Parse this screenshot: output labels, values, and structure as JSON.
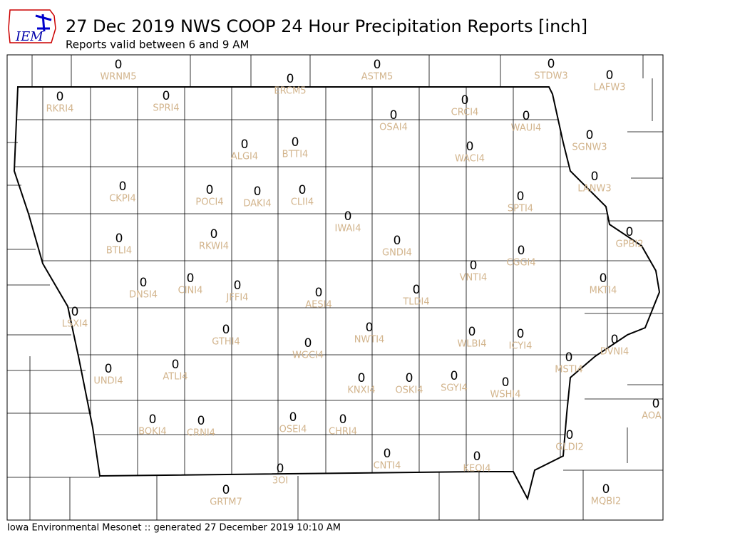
{
  "logo": "IEM",
  "title": "27 Dec 2019 NWS COOP 24 Hour Precipitation Reports [inch]",
  "subtitle": "Reports valid between 6 and 9 AM",
  "footer": "Iowa Environmental Mesonet :: generated 27 December 2019 10:10 AM",
  "stations": [
    {
      "id": "WRNM5",
      "value": 0
    },
    {
      "id": "ERCM5",
      "value": 0
    },
    {
      "id": "ASTM5",
      "value": 0
    },
    {
      "id": "STDW3",
      "value": 0
    },
    {
      "id": "LAFW3",
      "value": 0
    },
    {
      "id": "RKRI4",
      "value": 0
    },
    {
      "id": "SPRI4",
      "value": 0
    },
    {
      "id": "CRCI4",
      "value": 0
    },
    {
      "id": "OSAI4",
      "value": 0
    },
    {
      "id": "WAUI4",
      "value": 0
    },
    {
      "id": "SGNW3",
      "value": 0
    },
    {
      "id": "ALGI4",
      "value": 0
    },
    {
      "id": "BTTI4",
      "value": 0
    },
    {
      "id": "WACI4",
      "value": 0
    },
    {
      "id": "LANW3",
      "value": 0
    },
    {
      "id": "CKPI4",
      "value": 0
    },
    {
      "id": "POCI4",
      "value": 0
    },
    {
      "id": "DAKI4",
      "value": 0
    },
    {
      "id": "CLII4",
      "value": 0
    },
    {
      "id": "SPTI4",
      "value": 0
    },
    {
      "id": "IWAI4",
      "value": 0
    },
    {
      "id": "GPBI2",
      "value": 0
    },
    {
      "id": "RKWI4",
      "value": 0
    },
    {
      "id": "BTLI4",
      "value": 0
    },
    {
      "id": "GNDI4",
      "value": 0
    },
    {
      "id": "CGGI4",
      "value": 0
    },
    {
      "id": "VNTI4",
      "value": 0
    },
    {
      "id": "CINI4",
      "value": 0
    },
    {
      "id": "MKTI4",
      "value": 0
    },
    {
      "id": "DNSI4",
      "value": 0
    },
    {
      "id": "JFFI4",
      "value": 0
    },
    {
      "id": "TLDI4",
      "value": 0
    },
    {
      "id": "AESI4",
      "value": 0
    },
    {
      "id": "LSXI4",
      "value": 0
    },
    {
      "id": "NWTI4",
      "value": 0
    },
    {
      "id": "GTHI4",
      "value": 0
    },
    {
      "id": "WLBI4",
      "value": 0
    },
    {
      "id": "ICYI4",
      "value": 0
    },
    {
      "id": "DVNI4",
      "value": 0
    },
    {
      "id": "WGCI4",
      "value": 0
    },
    {
      "id": "MSTI4",
      "value": 0
    },
    {
      "id": "UNDI4",
      "value": 0
    },
    {
      "id": "ATLI4",
      "value": 0
    },
    {
      "id": "KNXI4",
      "value": 0
    },
    {
      "id": "OSKI4",
      "value": 0
    },
    {
      "id": "SGYI4",
      "value": 0
    },
    {
      "id": "WSHI4",
      "value": 0
    },
    {
      "id": "AOA",
      "value": 0
    },
    {
      "id": "BOKI4",
      "value": 0
    },
    {
      "id": "CRNI4",
      "value": 0
    },
    {
      "id": "OSEI4",
      "value": 0
    },
    {
      "id": "CHRI4",
      "value": 0
    },
    {
      "id": "GLDI2",
      "value": 0
    },
    {
      "id": "CNTI4",
      "value": 0
    },
    {
      "id": "KEOI4",
      "value": 0
    },
    {
      "id": "3OI",
      "value": 0
    },
    {
      "id": "GRTM7",
      "value": 0
    },
    {
      "id": "MQBI2",
      "value": 0
    }
  ]
}
